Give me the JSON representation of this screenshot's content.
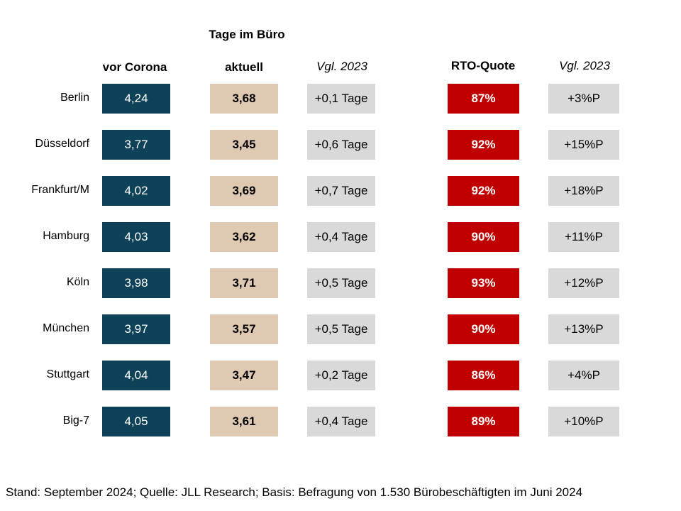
{
  "chart_data": {
    "type": "table",
    "group_header": "Tage im Büro",
    "columns": [
      "vor Corona",
      "aktuell",
      "Vgl. 2023",
      "RTO-Quote",
      "Vgl. 2023"
    ],
    "rows": [
      {
        "city": "Berlin",
        "vor_corona": "4,24",
        "aktuell": "3,68",
        "vgl_tage": "+0,1 Tage",
        "rto": "87%",
        "vgl_rto": "+3%P"
      },
      {
        "city": "Düsseldorf",
        "vor_corona": "3,77",
        "aktuell": "3,45",
        "vgl_tage": "+0,6 Tage",
        "rto": "92%",
        "vgl_rto": "+15%P"
      },
      {
        "city": "Frankfurt/M",
        "vor_corona": "4,02",
        "aktuell": "3,69",
        "vgl_tage": "+0,7 Tage",
        "rto": "92%",
        "vgl_rto": "+18%P"
      },
      {
        "city": "Hamburg",
        "vor_corona": "4,03",
        "aktuell": "3,62",
        "vgl_tage": "+0,4 Tage",
        "rto": "90%",
        "vgl_rto": "+11%P"
      },
      {
        "city": "Köln",
        "vor_corona": "3,98",
        "aktuell": "3,71",
        "vgl_tage": "+0,5 Tage",
        "rto": "93%",
        "vgl_rto": "+12%P"
      },
      {
        "city": "München",
        "vor_corona": "3,97",
        "aktuell": "3,57",
        "vgl_tage": "+0,5 Tage",
        "rto": "90%",
        "vgl_rto": "+13%P"
      },
      {
        "city": "Stuttgart",
        "vor_corona": "4,04",
        "aktuell": "3,47",
        "vgl_tage": "+0,2 Tage",
        "rto": "86%",
        "vgl_rto": "+4%P"
      },
      {
        "city": "Big-7",
        "vor_corona": "4,05",
        "aktuell": "3,61",
        "vgl_tage": "+0,4 Tage",
        "rto": "89%",
        "vgl_rto": "+10%P"
      }
    ],
    "colors": {
      "vor_corona": "#0e4259",
      "aktuell": "#e0c9b3",
      "vgl": "#d9d9d9",
      "rto": "#c00000"
    }
  },
  "footer": "Stand: September 2024; Quelle: JLL Research; Basis: Befragung von 1.530 Bürobeschäftigten im Juni 2024"
}
